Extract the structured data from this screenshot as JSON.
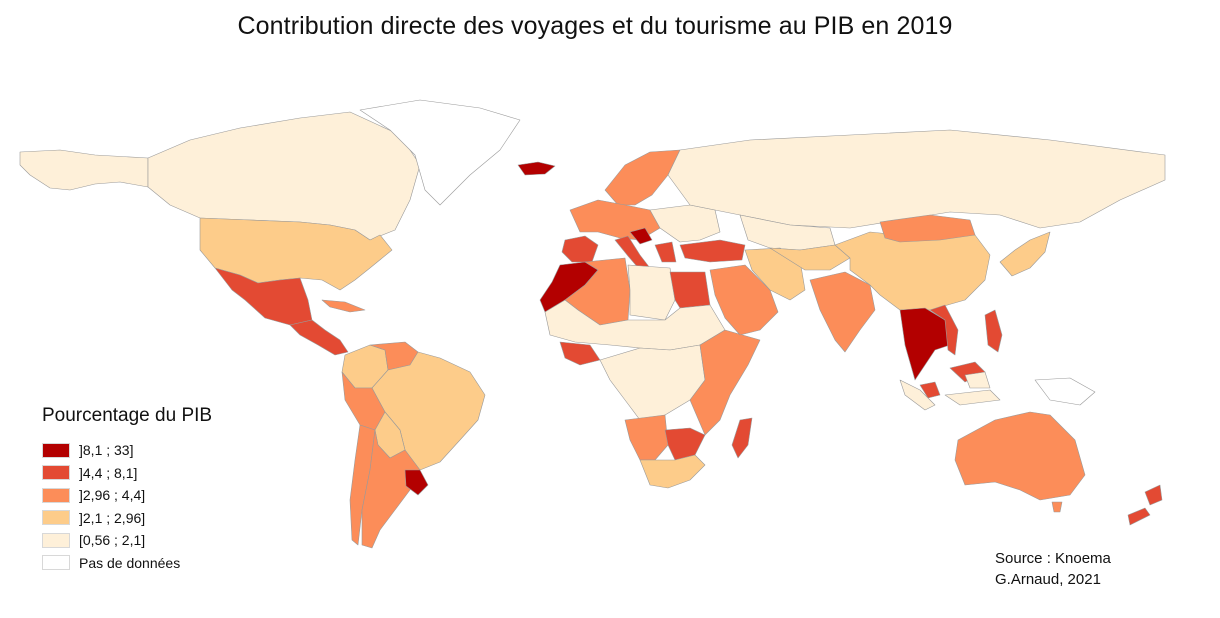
{
  "title": "Contribution directe des voyages et du tourisme au PIB en 2019",
  "legend": {
    "title": "Pourcentage du PIB",
    "items": [
      {
        "label": "]8,1 ; 33]",
        "color": "#b30000",
        "class": "c5"
      },
      {
        "label": "]4,4 ; 8,1]",
        "color": "#e34a33",
        "class": "c4"
      },
      {
        "label": "]2,96 ; 4,4]",
        "color": "#fc8d59",
        "class": "c3"
      },
      {
        "label": "]2,1 ; 2,96]",
        "color": "#fdcc8a",
        "class": "c2"
      },
      {
        "label": "[0,56 ; 2,1]",
        "color": "#fef0d9",
        "class": "c1"
      },
      {
        "label": "Pas de données",
        "color": "#ffffff",
        "class": "c0"
      }
    ]
  },
  "source": {
    "line1": "Source :  Knoema",
    "line2": "G.Arnaud, 2021"
  },
  "regions": [
    {
      "name": "alaska",
      "class": "c1"
    },
    {
      "name": "canada",
      "class": "c1"
    },
    {
      "name": "greenland",
      "class": "c0"
    },
    {
      "name": "usa",
      "class": "c2"
    },
    {
      "name": "mexico",
      "class": "c4"
    },
    {
      "name": "central-america",
      "class": "c4"
    },
    {
      "name": "cuba",
      "class": "c3"
    },
    {
      "name": "colombia",
      "class": "c2"
    },
    {
      "name": "venezuela",
      "class": "c3"
    },
    {
      "name": "brazil",
      "class": "c2"
    },
    {
      "name": "peru",
      "class": "c3"
    },
    {
      "name": "bolivia",
      "class": "c2"
    },
    {
      "name": "chile",
      "class": "c3"
    },
    {
      "name": "argentina",
      "class": "c3"
    },
    {
      "name": "uruguay",
      "class": "c5"
    },
    {
      "name": "iceland",
      "class": "c5"
    },
    {
      "name": "scandinavia",
      "class": "c3"
    },
    {
      "name": "western-europe",
      "class": "c3"
    },
    {
      "name": "spain",
      "class": "c4"
    },
    {
      "name": "italy-greece",
      "class": "c4"
    },
    {
      "name": "croatia",
      "class": "c5"
    },
    {
      "name": "eastern-europe",
      "class": "c1"
    },
    {
      "name": "turkey",
      "class": "c4"
    },
    {
      "name": "russia",
      "class": "c1"
    },
    {
      "name": "kazakhstan",
      "class": "c1"
    },
    {
      "name": "morocco",
      "class": "c5"
    },
    {
      "name": "algeria",
      "class": "c3"
    },
    {
      "name": "libya",
      "class": "c1"
    },
    {
      "name": "egypt",
      "class": "c4"
    },
    {
      "name": "sahel",
      "class": "c1"
    },
    {
      "name": "west-africa",
      "class": "c4"
    },
    {
      "name": "central-africa",
      "class": "c1"
    },
    {
      "name": "east-africa",
      "class": "c3"
    },
    {
      "name": "angola-namibia",
      "class": "c3"
    },
    {
      "name": "zimbabwe",
      "class": "c4"
    },
    {
      "name": "south-africa",
      "class": "c2"
    },
    {
      "name": "madagascar",
      "class": "c4"
    },
    {
      "name": "saudi-arabia",
      "class": "c3"
    },
    {
      "name": "iran",
      "class": "c2"
    },
    {
      "name": "central-asia",
      "class": "c2"
    },
    {
      "name": "india",
      "class": "c3"
    },
    {
      "name": "china",
      "class": "c2"
    },
    {
      "name": "mongolia",
      "class": "c3"
    },
    {
      "name": "japan-korea",
      "class": "c2"
    },
    {
      "name": "thailand-cambodia",
      "class": "c5"
    },
    {
      "name": "vietnam",
      "class": "c4"
    },
    {
      "name": "philippines",
      "class": "c4"
    },
    {
      "name": "malaysia",
      "class": "c4"
    },
    {
      "name": "indonesia",
      "class": "c1"
    },
    {
      "name": "papua",
      "class": "c0"
    },
    {
      "name": "australia",
      "class": "c3"
    },
    {
      "name": "tasmania",
      "class": "c3"
    },
    {
      "name": "new-zealand",
      "class": "c4"
    }
  ]
}
